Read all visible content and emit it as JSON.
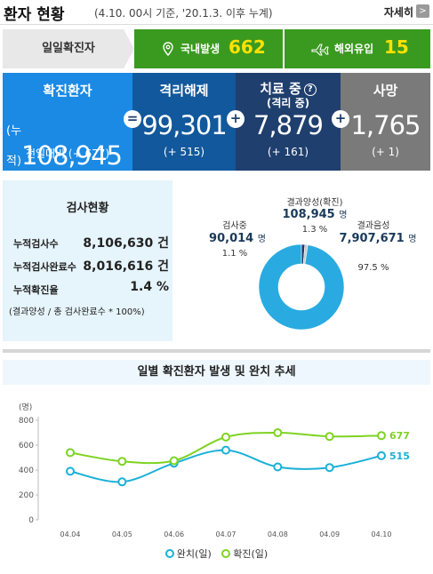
{
  "header": {
    "title": "환자 현황",
    "subtitle": "(4.10. 00시 기준, '20.1.3. 이후 누계)",
    "more_label": "자세히",
    "more_arrow": ">"
  },
  "daily": {
    "label": "일일확진자",
    "domestic_label": "국내발생",
    "domestic_value": "662",
    "overseas_label": "해외유입",
    "overseas_value": "15",
    "color": "#3a9a1f"
  },
  "stats": {
    "confirmed": {
      "title": "확진환자",
      "prefix": "(누적)",
      "value": "108,945",
      "delta": "전일대비 (+ 677)"
    },
    "released": {
      "title": "격리해제",
      "value": "99,301",
      "delta": "(+ 515)"
    },
    "treating": {
      "title": "치료 중",
      "title_sub": "(격리 중)",
      "help": "?",
      "value": "7,879",
      "delta": "(+ 161)"
    },
    "deaths": {
      "title": "사망",
      "value": "1,765",
      "delta": "(+ 1)"
    },
    "op_equals": "=",
    "op_plus": "+"
  },
  "tests": {
    "title": "검사현황",
    "rows": [
      {
        "label": "누적검사수",
        "value": "8,106,630 건"
      },
      {
        "label": "누적검사완료수",
        "value": "8,016,616 건"
      },
      {
        "label": "누적확진율",
        "value": "1.4 %"
      }
    ],
    "note": "(결과양성 / 총 검사완료수 * 100%)",
    "donut": {
      "positive": {
        "label": "결과양성(확진)",
        "value": "108,945",
        "unit": "명",
        "pct": "1.3 %",
        "share": 1.3
      },
      "testing": {
        "label": "검사중",
        "value": "90,014",
        "unit": "명",
        "pct": "1.1 %",
        "share": 1.1
      },
      "negative": {
        "label": "결과음성",
        "value": "7,907,671",
        "unit": "명",
        "pct": "97.5 %",
        "share": 97.5
      },
      "colors": {
        "negative": "#29aae1",
        "positive": "#1a3a6e",
        "testing": "#c9c9c9"
      }
    }
  },
  "chart": {
    "title": "일별 확진환자 발생 및 완치 추세",
    "ylabel": "(명)",
    "legend_released": "완치(일)",
    "legend_confirmed": "확진(일)"
  },
  "chart_data": {
    "type": "line",
    "title": "일별 확진환자 발생 및 완치 추세",
    "ylabel": "(명)",
    "x": [
      "04.04",
      "04.05",
      "04.06",
      "04.07",
      "04.08",
      "04.09",
      "04.10"
    ],
    "ylim": [
      0,
      800
    ],
    "yticks": [
      0,
      200,
      400,
      600,
      800
    ],
    "series": [
      {
        "name": "완치(일)",
        "color": "#1ab0d8",
        "values": [
          390,
          305,
          455,
          560,
          425,
          420,
          515
        ],
        "end_label": "515"
      },
      {
        "name": "확진(일)",
        "color": "#7ed321",
        "values": [
          540,
          470,
          475,
          665,
          700,
          670,
          677
        ],
        "end_label": "677"
      }
    ],
    "grid": false,
    "legend": "bottom"
  }
}
